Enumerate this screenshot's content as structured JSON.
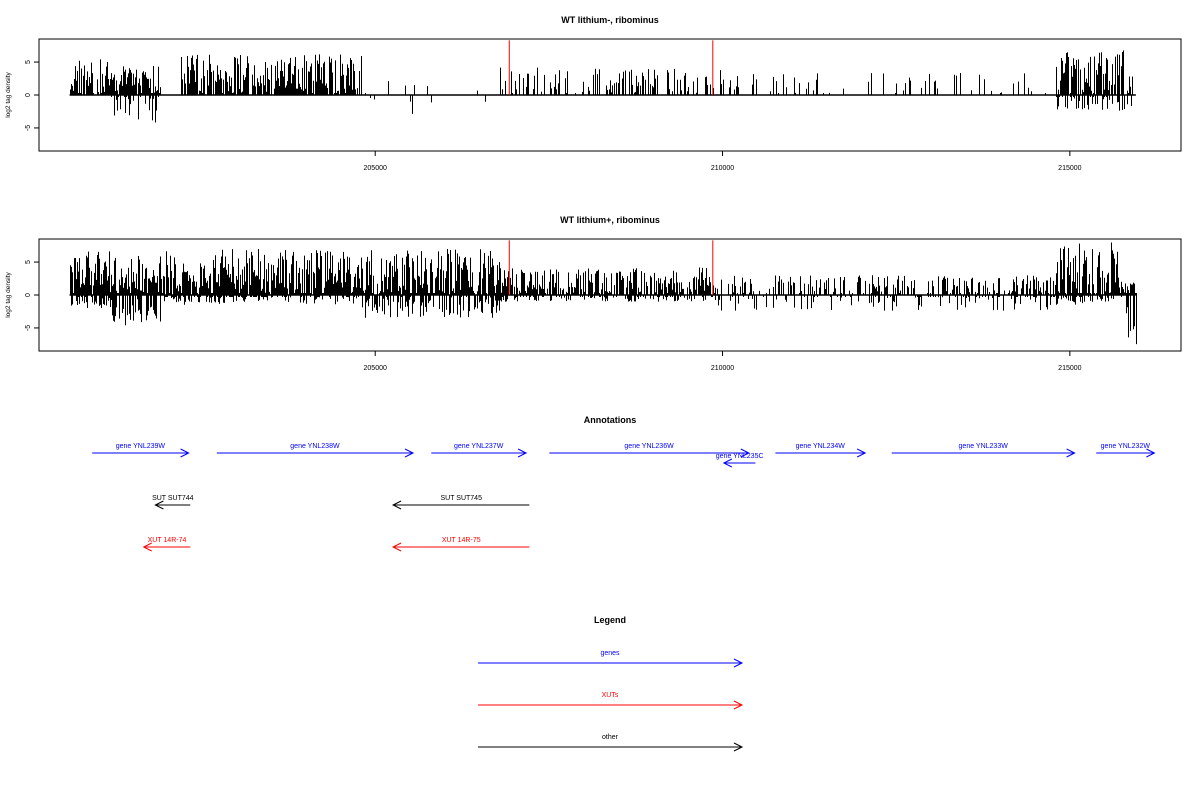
{
  "chart_data": [
    {
      "type": "bar",
      "title": "WT lithium-, ribominus",
      "ylabel": "log2 tag density",
      "xlim": [
        200160,
        216600
      ],
      "ylim": [
        -8.5,
        8.5
      ],
      "x_ticks": [
        205000,
        210000,
        215000
      ],
      "y_ticks": [
        -5,
        0,
        5
      ],
      "red_markers_x": [
        206930,
        209860
      ],
      "series": [
        {
          "regions": [
            {
              "start": 200600,
              "end": 201200,
              "pos_mean": 2.6,
              "pos_max": 5.6,
              "neg_mean": 0,
              "neg_max": 0,
              "density": 0.85
            },
            {
              "start": 201200,
              "end": 201900,
              "pos_mean": 2.0,
              "pos_max": 4.6,
              "neg_mean": -2.0,
              "neg_max": -4.2,
              "density": 0.85
            },
            {
              "start": 202200,
              "end": 204800,
              "pos_mean": 3.1,
              "pos_max": 6.2,
              "neg_mean": 0,
              "neg_max": 0,
              "density": 0.9
            },
            {
              "start": 204800,
              "end": 206800,
              "pos_mean": 1.6,
              "pos_max": 3.7,
              "neg_mean": -1.6,
              "neg_max": -3.3,
              "density": 0.05
            },
            {
              "start": 206800,
              "end": 210200,
              "pos_mean": 2.2,
              "pos_max": 4.2,
              "neg_mean": 0,
              "neg_max": 0,
              "density": 0.35
            },
            {
              "start": 210200,
              "end": 214800,
              "pos_mean": 1.8,
              "pos_max": 3.4,
              "neg_mean": 0,
              "neg_max": 0,
              "density": 0.17
            },
            {
              "start": 214800,
              "end": 215900,
              "pos_mean": 3.4,
              "pos_max": 7.2,
              "neg_mean": -1.0,
              "neg_max": -2.4,
              "density": 0.8
            }
          ]
        }
      ]
    },
    {
      "type": "bar",
      "title": "WT lithium+, ribominus",
      "ylabel": "log2 tag density",
      "xlim": [
        200160,
        216600
      ],
      "ylim": [
        -8.5,
        8.5
      ],
      "x_ticks": [
        205000,
        210000,
        215000
      ],
      "y_ticks": [
        -5,
        0,
        5
      ],
      "red_markers_x": [
        206930,
        209860
      ],
      "series": [
        {
          "regions": [
            {
              "start": 200600,
              "end": 201200,
              "pos_mean": 3.2,
              "pos_max": 6.8,
              "neg_mean": -0.8,
              "neg_max": -2.0,
              "density": 0.95
            },
            {
              "start": 201200,
              "end": 201900,
              "pos_mean": 3.0,
              "pos_max": 6.0,
              "neg_mean": -2.6,
              "neg_max": -4.6,
              "density": 0.95
            },
            {
              "start": 201900,
              "end": 204800,
              "pos_mean": 3.4,
              "pos_max": 7.0,
              "neg_mean": -0.5,
              "neg_max": -1.5,
              "density": 0.95
            },
            {
              "start": 204800,
              "end": 206800,
              "pos_mean": 3.2,
              "pos_max": 7.0,
              "neg_mean": -1.8,
              "neg_max": -3.5,
              "density": 0.95
            },
            {
              "start": 206800,
              "end": 209800,
              "pos_mean": 2.2,
              "pos_max": 4.2,
              "neg_mean": -0.5,
              "neg_max": -1.0,
              "density": 0.75
            },
            {
              "start": 209800,
              "end": 214800,
              "pos_mean": 1.5,
              "pos_max": 3.0,
              "neg_mean": -0.8,
              "neg_max": -2.4,
              "density": 0.5
            },
            {
              "start": 214800,
              "end": 215800,
              "pos_mean": 3.2,
              "pos_max": 8.0,
              "neg_mean": -0.6,
              "neg_max": -1.5,
              "density": 0.95
            },
            {
              "start": 215800,
              "end": 215950,
              "pos_mean": 1.0,
              "pos_max": 2.0,
              "neg_mean": -4.0,
              "neg_max": -8.0,
              "density": 0.95
            }
          ]
        }
      ]
    }
  ],
  "annotations": {
    "title": "Annotations",
    "colors": {
      "genes": "#0000ff",
      "xuts": "#ff0000",
      "other": "#000000"
    },
    "features": [
      {
        "label": "gene YNL239W",
        "start": 200750,
        "end": 203650,
        "strand": "+",
        "category": "genes",
        "row": 0
      },
      {
        "label": "gene YNL238W",
        "start": 204500,
        "end": 210400,
        "strand": "+",
        "category": "genes",
        "row": 0
      },
      {
        "label": "gene YNL237W",
        "start": 210950,
        "end": 213800,
        "strand": "+",
        "category": "genes",
        "row": 0
      },
      {
        "label": "gene YNL236W",
        "start": 214500,
        "end": 220500,
        "strand": "+",
        "category": "genes",
        "row": 0
      },
      {
        "label": "gene YNL235C",
        "start": 219750,
        "end": 220700,
        "strand": "-",
        "category": "genes",
        "row": 1
      },
      {
        "label": "gene YNL234W",
        "start": 221300,
        "end": 224000,
        "strand": "+",
        "category": "genes",
        "row": 0
      },
      {
        "label": "gene YNL233W",
        "start": 224800,
        "end": 230300,
        "strand": "+",
        "category": "genes",
        "row": 0
      },
      {
        "label": "gene YNL232W",
        "start": 230950,
        "end": 232700,
        "strand": "+",
        "category": "genes",
        "row": 0
      },
      {
        "label": "SUT SUT744",
        "start": 202650,
        "end": 203700,
        "strand": "-",
        "category": "other",
        "row": 2
      },
      {
        "label": "SUT SUT745",
        "start": 209800,
        "end": 213900,
        "strand": "-",
        "category": "other",
        "row": 2
      },
      {
        "label": "XUT 14R-74",
        "start": 202300,
        "end": 203700,
        "strand": "-",
        "category": "xuts",
        "row": 3
      },
      {
        "label": "XUT 14R-75",
        "start": 209800,
        "end": 213900,
        "strand": "-",
        "category": "xuts",
        "row": 3
      }
    ]
  },
  "legend": {
    "title": "Legend",
    "items": [
      {
        "label": "genes",
        "color": "#0000ff"
      },
      {
        "label": "XUTs",
        "color": "#ff0000"
      },
      {
        "label": "other",
        "color": "#000000"
      }
    ]
  }
}
